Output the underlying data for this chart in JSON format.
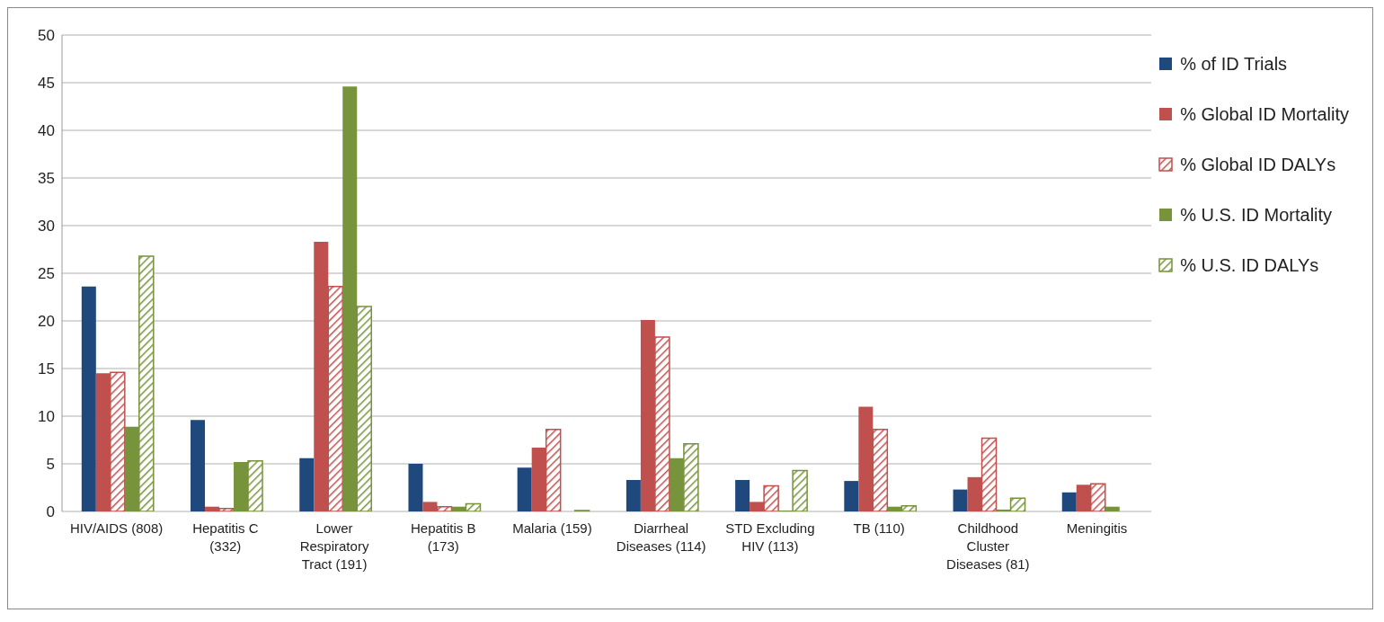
{
  "chart_data": {
    "type": "bar",
    "categories": [
      "HIV/AIDS (808)",
      "Hepatitis C (332)",
      "Lower Respiratory Tract (191)",
      "Hepatitis B (173)",
      "Malaria (159)",
      "Diarrheal Diseases (114)",
      "STD Excluding HIV (113)",
      "TB (110)",
      "Childhood Cluster Diseases (81)",
      "Meningitis"
    ],
    "series": [
      {
        "name": "% of ID Trials",
        "color": "#1f497d",
        "values": [
          23.6,
          9.6,
          5.6,
          5.0,
          4.6,
          3.3,
          3.3,
          3.2,
          2.3,
          2.0
        ]
      },
      {
        "name": "% Global ID Mortality",
        "color": "#c0504d",
        "values": [
          14.5,
          0.5,
          28.3,
          1.0,
          6.7,
          20.1,
          1.0,
          11.0,
          3.6,
          2.8
        ]
      },
      {
        "name": "% Global ID DALYs",
        "color": "#c0504d",
        "values": [
          14.6,
          0.3,
          23.6,
          0.5,
          8.6,
          18.3,
          2.7,
          8.6,
          7.7,
          2.9
        ]
      },
      {
        "name": "% U.S. ID Mortality",
        "color": "#77933c",
        "values": [
          8.9,
          5.2,
          44.6,
          0.5,
          0,
          5.6,
          0.1,
          0.5,
          0.2,
          0.5
        ]
      },
      {
        "name": "% U.S. ID DALYs",
        "color": "#77933c",
        "values": [
          26.8,
          5.3,
          21.5,
          0.8,
          0.1,
          7.1,
          4.3,
          0.6,
          1.4,
          null
        ]
      }
    ],
    "ylim": [
      0,
      50
    ],
    "yticks": [
      0,
      5,
      10,
      15,
      20,
      25,
      30,
      35,
      40,
      45,
      50
    ],
    "grid": "y",
    "legend": "top right"
  }
}
